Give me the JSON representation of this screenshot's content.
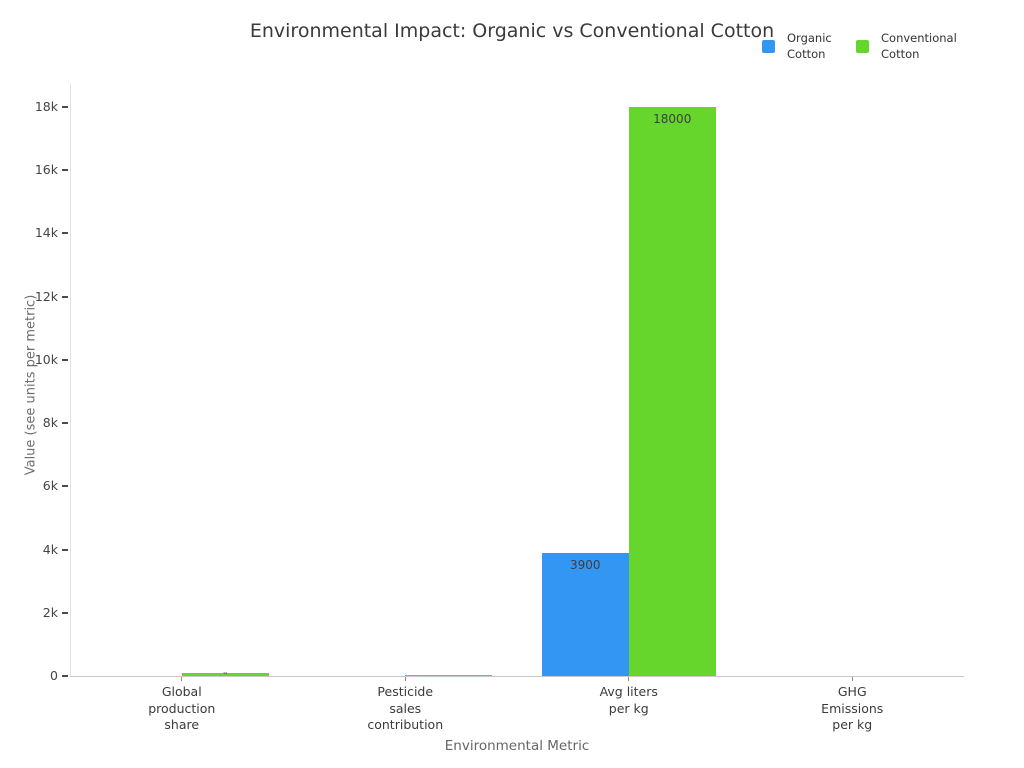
{
  "title": "Environmental Impact: Organic vs Conventional Cotton",
  "legend": {
    "position": "top-right",
    "items": [
      {
        "name": "Organic Cotton",
        "lines": [
          "Organic",
          "Cotton"
        ],
        "color": "#3496F3"
      },
      {
        "name": "Conventional Cotton",
        "lines": [
          "Conventional",
          "Cotton"
        ],
        "color": "#66D62C"
      }
    ]
  },
  "chart_data": {
    "type": "bar",
    "title": "Environmental Impact: Organic vs Conventional Cotton",
    "xlabel": "Environmental Metric",
    "ylabel": "Value (see units per metric)",
    "categories": [
      "Global production share",
      "Pesticide sales contribution",
      "Avg liters per kg",
      "GHG Emissions per kg"
    ],
    "category_label_lines": [
      [
        "Global",
        "production",
        "share"
      ],
      [
        "Pesticide",
        "sales",
        "contribution"
      ],
      [
        "Avg liters",
        "per kg"
      ],
      [
        "GHG",
        "Emissions",
        "per kg"
      ]
    ],
    "series": [
      {
        "name": "Organic Cotton",
        "color": "#3496F3",
        "values": [
          1,
          0,
          3900,
          1
        ],
        "bar_labels": [
          "",
          "",
          "3900",
          ""
        ]
      },
      {
        "name": "Conventional Cotton",
        "color": "#66D62C",
        "values": [
          99,
          16,
          18000,
          2
        ],
        "bar_labels": [
          "99",
          "",
          "18000",
          ""
        ]
      }
    ],
    "ylim": [
      0,
      18800
    ],
    "yticks": [
      {
        "value": 0,
        "label": "0"
      },
      {
        "value": 2000,
        "label": "2k"
      },
      {
        "value": 4000,
        "label": "4k"
      },
      {
        "value": 6000,
        "label": "6k"
      },
      {
        "value": 8000,
        "label": "8k"
      },
      {
        "value": 10000,
        "label": "10k"
      },
      {
        "value": 12000,
        "label": "12k"
      },
      {
        "value": 14000,
        "label": "14k"
      },
      {
        "value": 16000,
        "label": "16k"
      },
      {
        "value": 18000,
        "label": "18k"
      }
    ],
    "grid": false,
    "legend_position": "top-right",
    "background_color": "#ffffff"
  },
  "colors": {
    "organic": "#3496F3",
    "conventional": "#66D62C",
    "title_text": "#3a3a3a",
    "axis_title_text": "#666666",
    "tick_text": "#444444",
    "axis_line": "#c9c9c9"
  }
}
